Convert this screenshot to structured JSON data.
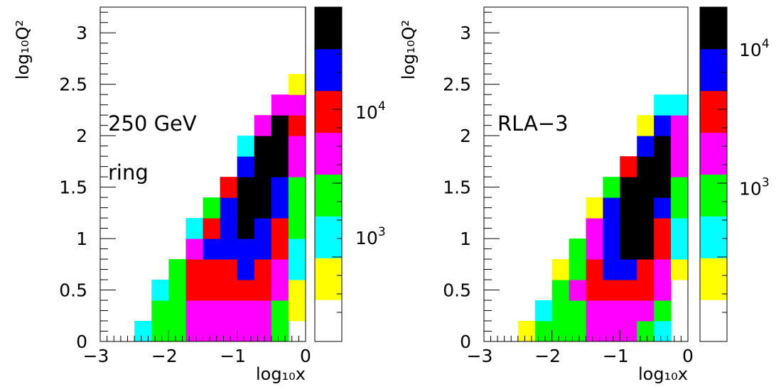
{
  "palette": [
    "#ffffff",
    "#ffff00",
    "#00ffff",
    "#00ff00",
    "#ff00ff",
    "#ff0000",
    "#0000ff",
    "#000000"
  ],
  "chart_data": [
    {
      "type": "heatmap",
      "annotations": [
        "250 GeV",
        "ring"
      ],
      "xlabel": "log₁₀x",
      "ylabel": "log₁₀Q²",
      "xlim": [
        -3.0,
        0.0
      ],
      "ylim": [
        0.0,
        3.25
      ],
      "x_ticks": [
        "−3",
        "−2",
        "−1",
        "0"
      ],
      "y_ticks": [
        "0",
        "0.5",
        "1",
        "1.5",
        "2",
        "2.5",
        "3"
      ],
      "bin_width_x": 0.25,
      "bin_width_y": 0.2,
      "colorbar": {
        "levels": 8,
        "labels": [
          {
            "text": "10",
            "sup": "4",
            "at": 0.6875
          },
          {
            "text": "10",
            "sup": "3",
            "at": 0.3125
          }
        ]
      },
      "bins_x0": [
        -2.5,
        -2.25,
        -2.0,
        -1.75,
        -1.5,
        -1.25,
        -1.0,
        -0.75,
        -0.5,
        -0.25
      ],
      "bins_y0": [
        0.0,
        0.2,
        0.4,
        0.6,
        0.8,
        1.0,
        1.2,
        1.4,
        1.6,
        1.8,
        2.0,
        2.2,
        2.4
      ],
      "levels": [
        [
          [
            0,
            2
          ],
          [
            1,
            3
          ],
          [
            2,
            3
          ],
          [
            3,
            4
          ],
          [
            4,
            4
          ],
          [
            5,
            4
          ],
          [
            6,
            4
          ],
          [
            7,
            4
          ],
          [
            8,
            3
          ],
          [
            9,
            0
          ]
        ],
        [
          [
            1,
            3
          ],
          [
            2,
            3
          ],
          [
            3,
            4
          ],
          [
            4,
            4
          ],
          [
            5,
            4
          ],
          [
            6,
            4
          ],
          [
            7,
            4
          ],
          [
            8,
            3
          ],
          [
            9,
            1
          ]
        ],
        [
          [
            1,
            2
          ],
          [
            2,
            3
          ],
          [
            3,
            5
          ],
          [
            4,
            5
          ],
          [
            5,
            5
          ],
          [
            6,
            5
          ],
          [
            7,
            5
          ],
          [
            8,
            4
          ],
          [
            9,
            1
          ]
        ],
        [
          [
            2,
            3
          ],
          [
            3,
            5
          ],
          [
            4,
            5
          ],
          [
            5,
            5
          ],
          [
            6,
            6
          ],
          [
            7,
            5
          ],
          [
            8,
            4
          ],
          [
            9,
            2
          ]
        ],
        [
          [
            3,
            4
          ],
          [
            4,
            6
          ],
          [
            5,
            6
          ],
          [
            6,
            6
          ],
          [
            7,
            6
          ],
          [
            8,
            5
          ],
          [
            9,
            2
          ]
        ],
        [
          [
            3,
            2
          ],
          [
            4,
            5
          ],
          [
            5,
            6
          ],
          [
            6,
            7
          ],
          [
            7,
            6
          ],
          [
            8,
            5
          ],
          [
            9,
            3
          ]
        ],
        [
          [
            4,
            3
          ],
          [
            5,
            6
          ],
          [
            6,
            7
          ],
          [
            7,
            7
          ],
          [
            8,
            6
          ],
          [
            9,
            3
          ]
        ],
        [
          [
            5,
            5
          ],
          [
            6,
            7
          ],
          [
            7,
            7
          ],
          [
            8,
            6
          ],
          [
            9,
            3
          ]
        ],
        [
          [
            6,
            6
          ],
          [
            7,
            7
          ],
          [
            8,
            7
          ],
          [
            9,
            4
          ]
        ],
        [
          [
            6,
            2
          ],
          [
            7,
            7
          ],
          [
            8,
            7
          ],
          [
            9,
            4
          ]
        ],
        [
          [
            7,
            4
          ],
          [
            8,
            7
          ],
          [
            9,
            5
          ]
        ],
        [
          [
            8,
            4
          ],
          [
            9,
            4
          ]
        ],
        [
          [
            9,
            1
          ]
        ]
      ]
    },
    {
      "type": "heatmap",
      "annotations": [
        "RLA−3"
      ],
      "xlabel": "log₁₀x",
      "ylabel": "log₁₀Q²",
      "xlim": [
        -3.0,
        0.0
      ],
      "ylim": [
        0.0,
        3.25
      ],
      "x_ticks": [
        "−3",
        "−2",
        "−1",
        "0"
      ],
      "y_ticks": [
        "0",
        "0.5",
        "1",
        "1.5",
        "2",
        "2.5",
        "3"
      ],
      "bin_width_x": 0.25,
      "bin_width_y": 0.2,
      "colorbar": {
        "levels": 8,
        "labels": [
          {
            "text": "10",
            "sup": "4",
            "at": 0.875
          },
          {
            "text": "10",
            "sup": "3",
            "at": 0.46
          }
        ]
      },
      "bins_x0": [
        -2.5,
        -2.25,
        -2.0,
        -1.75,
        -1.5,
        -1.25,
        -1.0,
        -0.75,
        -0.5,
        -0.25
      ],
      "bins_y0": [
        0.0,
        0.2,
        0.4,
        0.6,
        0.8,
        1.0,
        1.2,
        1.4,
        1.6,
        1.8,
        2.0,
        2.2
      ],
      "levels": [
        [
          [
            0,
            1
          ],
          [
            1,
            3
          ],
          [
            2,
            3
          ],
          [
            3,
            3
          ],
          [
            4,
            4
          ],
          [
            5,
            4
          ],
          [
            6,
            4
          ],
          [
            7,
            3
          ],
          [
            8,
            2
          ],
          [
            9,
            0
          ]
        ],
        [
          [
            1,
            2
          ],
          [
            2,
            3
          ],
          [
            3,
            3
          ],
          [
            4,
            4
          ],
          [
            5,
            4
          ],
          [
            6,
            4
          ],
          [
            7,
            4
          ],
          [
            8,
            3
          ],
          [
            9,
            0
          ]
        ],
        [
          [
            2,
            3
          ],
          [
            3,
            4
          ],
          [
            4,
            5
          ],
          [
            5,
            5
          ],
          [
            6,
            5
          ],
          [
            7,
            5
          ],
          [
            8,
            4
          ],
          [
            9,
            0
          ]
        ],
        [
          [
            2,
            1
          ],
          [
            3,
            3
          ],
          [
            4,
            5
          ],
          [
            5,
            6
          ],
          [
            6,
            6
          ],
          [
            7,
            5
          ],
          [
            8,
            4
          ],
          [
            9,
            1
          ]
        ],
        [
          [
            3,
            3
          ],
          [
            4,
            4
          ],
          [
            5,
            6
          ],
          [
            6,
            7
          ],
          [
            7,
            7
          ],
          [
            8,
            5
          ],
          [
            9,
            2
          ]
        ],
        [
          [
            4,
            4
          ],
          [
            5,
            6
          ],
          [
            6,
            7
          ],
          [
            7,
            7
          ],
          [
            8,
            5
          ],
          [
            9,
            2
          ]
        ],
        [
          [
            4,
            1
          ],
          [
            5,
            6
          ],
          [
            6,
            7
          ],
          [
            7,
            7
          ],
          [
            8,
            6
          ],
          [
            9,
            3
          ]
        ],
        [
          [
            5,
            3
          ],
          [
            6,
            7
          ],
          [
            7,
            7
          ],
          [
            8,
            7
          ],
          [
            9,
            3
          ]
        ],
        [
          [
            6,
            5
          ],
          [
            7,
            7
          ],
          [
            8,
            7
          ],
          [
            9,
            4
          ]
        ],
        [
          [
            7,
            6
          ],
          [
            8,
            7
          ],
          [
            9,
            4
          ]
        ],
        [
          [
            7,
            1
          ],
          [
            8,
            6
          ],
          [
            9,
            4
          ]
        ],
        [
          [
            8,
            2
          ],
          [
            9,
            2
          ]
        ]
      ]
    }
  ]
}
